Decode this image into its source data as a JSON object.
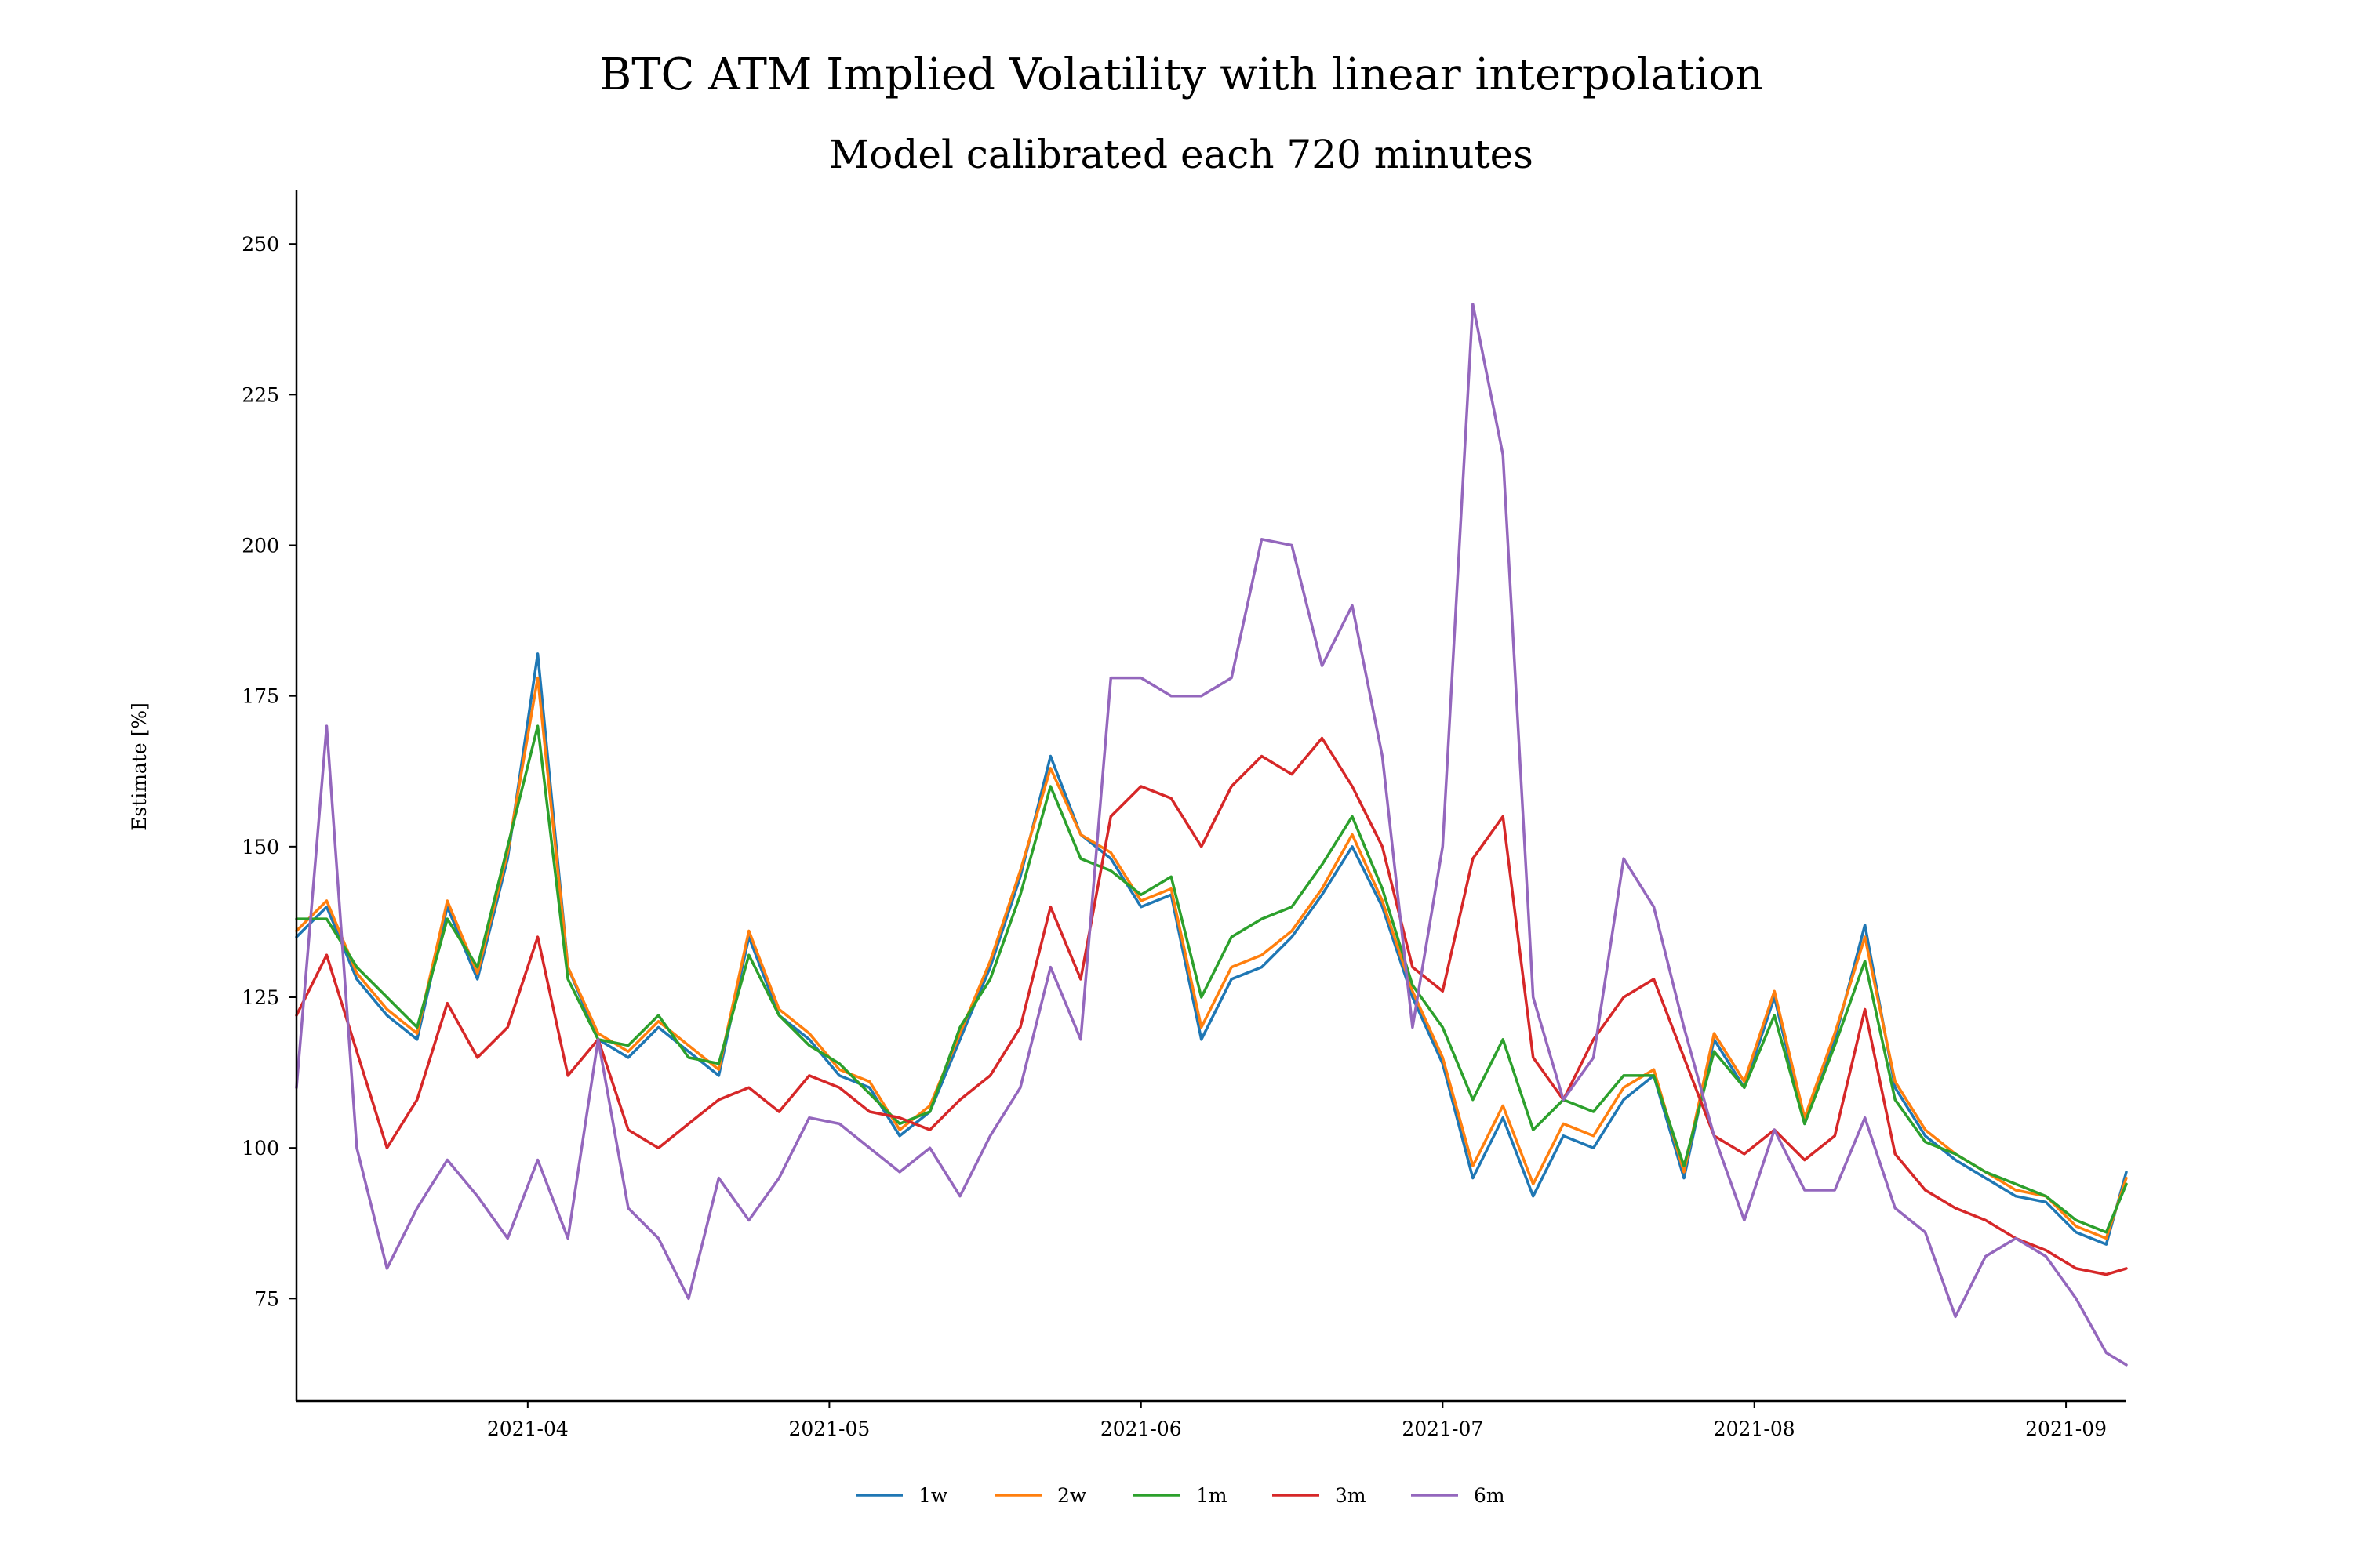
{
  "chart_data": {
    "type": "line",
    "title": "BTC ATM Implied Volatility with linear interpolation",
    "subtitle": "Model calibrated each 720 minutes",
    "xlabel": "",
    "ylabel": "Estimate [%]",
    "x_range": [
      "2021-03-09",
      "2021-09-07"
    ],
    "ylim": [
      58,
      259
    ],
    "yticks": [
      75,
      100,
      125,
      150,
      175,
      200,
      225,
      250
    ],
    "xticks": [
      "2021-04",
      "2021-05",
      "2021-06",
      "2021-07",
      "2021-08",
      "2021-09"
    ],
    "grid": false,
    "legend_position": "bottom-center",
    "x": [
      "2021-03-09",
      "2021-03-12",
      "2021-03-15",
      "2021-03-18",
      "2021-03-21",
      "2021-03-24",
      "2021-03-27",
      "2021-03-30",
      "2021-04-02",
      "2021-04-05",
      "2021-04-08",
      "2021-04-11",
      "2021-04-14",
      "2021-04-17",
      "2021-04-20",
      "2021-04-23",
      "2021-04-26",
      "2021-04-29",
      "2021-05-02",
      "2021-05-05",
      "2021-05-08",
      "2021-05-11",
      "2021-05-14",
      "2021-05-17",
      "2021-05-20",
      "2021-05-23",
      "2021-05-26",
      "2021-05-29",
      "2021-06-01",
      "2021-06-04",
      "2021-06-07",
      "2021-06-10",
      "2021-06-13",
      "2021-06-16",
      "2021-06-19",
      "2021-06-22",
      "2021-06-25",
      "2021-06-28",
      "2021-07-01",
      "2021-07-04",
      "2021-07-07",
      "2021-07-10",
      "2021-07-13",
      "2021-07-16",
      "2021-07-19",
      "2021-07-22",
      "2021-07-25",
      "2021-07-28",
      "2021-07-31",
      "2021-08-03",
      "2021-08-06",
      "2021-08-09",
      "2021-08-12",
      "2021-08-15",
      "2021-08-18",
      "2021-08-21",
      "2021-08-24",
      "2021-08-27",
      "2021-08-30",
      "2021-09-02",
      "2021-09-05",
      "2021-09-07"
    ],
    "series": [
      {
        "name": "1w",
        "color": "#1f77b4",
        "values": [
          135,
          140,
          128,
          122,
          118,
          140,
          128,
          148,
          182,
          130,
          118,
          115,
          120,
          116,
          112,
          135,
          122,
          118,
          112,
          110,
          102,
          106,
          118,
          130,
          145,
          165,
          152,
          148,
          140,
          142,
          118,
          128,
          130,
          135,
          142,
          150,
          140,
          125,
          114,
          95,
          105,
          92,
          102,
          100,
          108,
          112,
          95,
          118,
          110,
          125,
          104,
          118,
          137,
          110,
          102,
          98,
          95,
          92,
          91,
          86,
          84,
          96
        ]
      },
      {
        "name": "2w",
        "color": "#ff7f0e",
        "values": [
          136,
          141,
          129,
          123,
          119,
          141,
          129,
          149,
          178,
          130,
          119,
          116,
          121,
          117,
          113,
          136,
          123,
          119,
          113,
          111,
          103,
          107,
          119,
          131,
          146,
          163,
          152,
          149,
          141,
          143,
          120,
          130,
          132,
          136,
          143,
          152,
          141,
          126,
          115,
          97,
          107,
          94,
          104,
          102,
          110,
          113,
          96,
          119,
          111,
          126,
          105,
          119,
          135,
          111,
          103,
          99,
          96,
          93,
          92,
          87,
          85,
          95
        ]
      },
      {
        "name": "1m",
        "color": "#2ca02c",
        "values": [
          138,
          138,
          130,
          125,
          120,
          138,
          130,
          150,
          170,
          128,
          118,
          117,
          122,
          115,
          114,
          132,
          122,
          117,
          114,
          109,
          104,
          106,
          120,
          128,
          142,
          160,
          148,
          146,
          142,
          145,
          125,
          135,
          138,
          140,
          147,
          155,
          143,
          127,
          120,
          108,
          118,
          103,
          108,
          106,
          112,
          112,
          97,
          116,
          110,
          122,
          104,
          117,
          131,
          108,
          101,
          99,
          96,
          94,
          92,
          88,
          86,
          94
        ]
      },
      {
        "name": "3m",
        "color": "#d62728",
        "values": [
          122,
          132,
          116,
          100,
          108,
          124,
          115,
          120,
          135,
          112,
          118,
          103,
          100,
          104,
          108,
          110,
          106,
          112,
          110,
          106,
          105,
          103,
          108,
          112,
          120,
          140,
          128,
          155,
          160,
          158,
          150,
          160,
          165,
          162,
          168,
          160,
          150,
          130,
          126,
          148,
          155,
          115,
          108,
          118,
          125,
          128,
          115,
          102,
          99,
          103,
          98,
          102,
          123,
          99,
          93,
          90,
          88,
          85,
          83,
          80,
          79,
          80
        ]
      },
      {
        "name": "6m",
        "color": "#9467bd",
        "values": [
          110,
          170,
          100,
          80,
          90,
          98,
          92,
          85,
          98,
          85,
          118,
          90,
          85,
          75,
          95,
          88,
          95,
          105,
          104,
          100,
          96,
          100,
          92,
          102,
          110,
          130,
          118,
          178,
          178,
          175,
          175,
          178,
          201,
          200,
          180,
          190,
          165,
          120,
          150,
          240,
          215,
          125,
          108,
          115,
          148,
          140,
          120,
          102,
          88,
          103,
          93,
          93,
          105,
          90,
          86,
          72,
          82,
          85,
          82,
          75,
          66,
          64
        ]
      }
    ]
  }
}
